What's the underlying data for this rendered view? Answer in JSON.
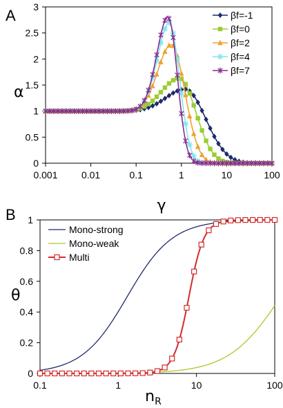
{
  "chart_data": [
    {
      "panel": "A",
      "type": "line",
      "xscale": "log",
      "xlabel": "γ",
      "ylabel": "α",
      "xlim": [
        0.001,
        100
      ],
      "ylim": [
        0,
        3
      ],
      "xticks": [
        "0.001",
        "0.01",
        "0.1",
        "1",
        "10",
        "100"
      ],
      "yticks": [
        "0",
        "0.5",
        "1",
        "1.5",
        "2",
        "2.5",
        "3"
      ],
      "legend_position": "top-right",
      "series": [
        {
          "name": "βf=-1",
          "color": "#1c2a6e",
          "marker": "diamond",
          "peak": 1.42,
          "peak_x": 1.2,
          "width_left": 0.6,
          "width_right": 0.5,
          "high_x": 30
        },
        {
          "name": "βf=0",
          "color": "#9acd32",
          "marker": "square",
          "peak": 1.63,
          "peak_x": 0.9,
          "width_left": 0.55,
          "width_right": 0.4,
          "high_x": 15
        },
        {
          "name": "βf=2",
          "color": "#f0a030",
          "marker": "triangle",
          "peak": 2.28,
          "peak_x": 0.6,
          "width_left": 0.42,
          "width_right": 0.33,
          "high_x": 6
        },
        {
          "name": "βf=4",
          "color": "#7fe5ef",
          "marker": "star4",
          "peak": 2.7,
          "peak_x": 0.55,
          "width_left": 0.38,
          "width_right": 0.25,
          "high_x": 3
        },
        {
          "name": "βf=7",
          "color": "#8a2b8f",
          "marker": "asterisk",
          "peak": 2.83,
          "peak_x": 0.52,
          "width_left": 0.36,
          "width_right": 0.22,
          "high_x": 2.5
        }
      ]
    },
    {
      "panel": "B",
      "type": "line",
      "xscale": "log",
      "xlabel": "n",
      "xlabel_sub": "R",
      "ylabel": "θ",
      "xlim": [
        0.1,
        100
      ],
      "ylim": [
        0,
        1
      ],
      "xticks": [
        "0.1",
        "1",
        "10",
        "100"
      ],
      "yticks": [
        "0",
        "0.2",
        "0.4",
        "0.6",
        "0.8",
        "1"
      ],
      "legend_position": "top-left",
      "series": [
        {
          "name": "Mono-strong",
          "color": "#1c2a6e",
          "marker": "none",
          "K": 1.3,
          "n": 1.5
        },
        {
          "name": "Mono-weak",
          "color": "#a8c82a",
          "marker": "none",
          "K": 120,
          "n": 1.3
        },
        {
          "name": "Multi",
          "color": "#d42a2a",
          "marker": "square",
          "K": 8,
          "n": 4.5
        }
      ]
    }
  ]
}
